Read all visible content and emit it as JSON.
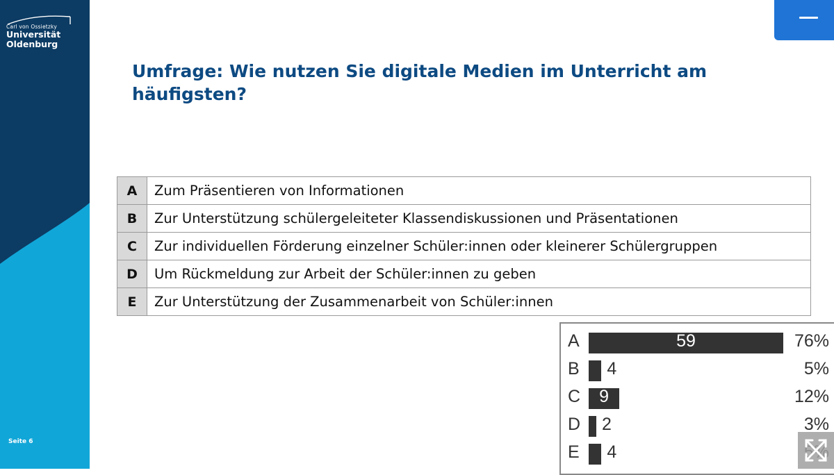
{
  "sidebar": {
    "logo_small": "Carl von Ossietzky",
    "logo_line1": "Universität",
    "logo_line2": "Oldenburg",
    "page_label": "Seite 6",
    "colors": {
      "dark": "#0c3b63",
      "light": "#11a6d8"
    }
  },
  "menu_button": {
    "icon": "hamburger-icon",
    "color": "#1f74d6"
  },
  "title": "Umfrage: Wie nutzen Sie digitale Medien im Unterricht am häufigsten?",
  "options": [
    {
      "letter": "A",
      "text": "Zum Präsentieren von Informationen"
    },
    {
      "letter": "B",
      "text": "Zur Unterstützung schülergeleiteter Klassendiskussionen und Präsentationen"
    },
    {
      "letter": "C",
      "text": "Zur individuellen Förderung einzelner Schüler:innen oder kleinerer Schülergruppen"
    },
    {
      "letter": "D",
      "text": "Um Rückmeldung zur Arbeit der Schüler:innen zu geben"
    },
    {
      "letter": "E",
      "text": "Zur Unterstützung der Zusammenarbeit von Schüler:innen"
    }
  ],
  "results": [
    {
      "label": "A",
      "count": "59",
      "percent": "76%"
    },
    {
      "label": "B",
      "count": "4",
      "percent": "5%"
    },
    {
      "label": "C",
      "count": "9",
      "percent": "12%"
    },
    {
      "label": "D",
      "count": "2",
      "percent": "3%"
    },
    {
      "label": "E",
      "count": "4",
      "percent": "5%"
    }
  ],
  "expand_button": {
    "icon": "expand-arrows-icon"
  }
}
